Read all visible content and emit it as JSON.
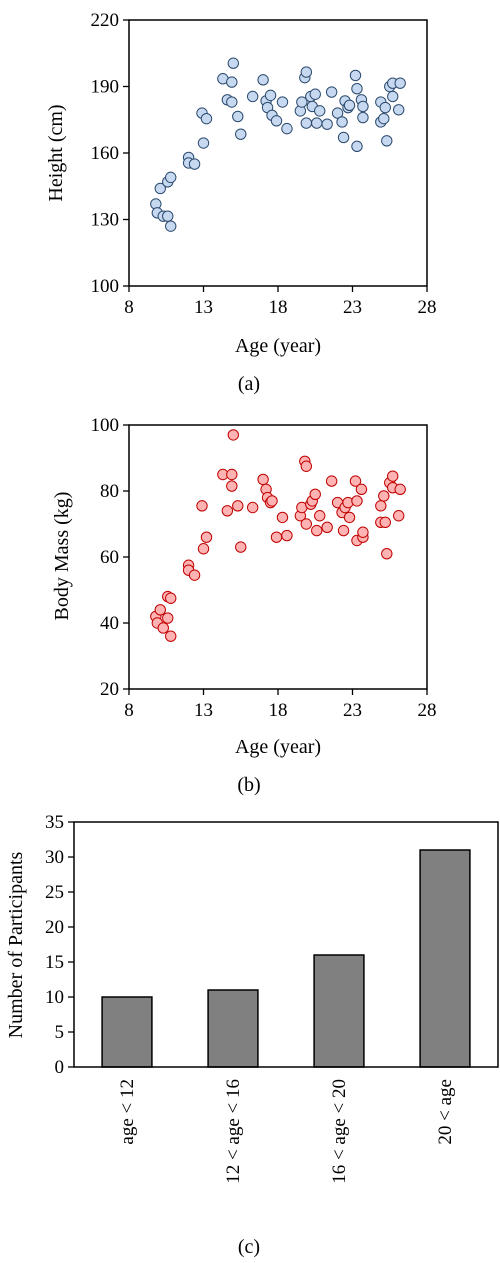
{
  "colors": {
    "panel_a_fill": "#c6d9f0",
    "panel_a_stroke": "#2c4a6e",
    "panel_b_fill": "#ffb3b3",
    "panel_b_stroke": "#c00000",
    "bar_fill": "#808080",
    "bar_stroke": "#000000"
  },
  "chart_data": [
    {
      "type": "scatter",
      "caption": "(a)",
      "xlabel": "Age (year)",
      "ylabel": "Height (cm)",
      "xlim": [
        8,
        28
      ],
      "ylim": [
        100,
        220
      ],
      "xticks": [
        8,
        13,
        18,
        23,
        28
      ],
      "yticks": [
        100,
        130,
        160,
        190,
        220
      ],
      "grid": false,
      "points": [
        [
          9.8,
          137
        ],
        [
          9.9,
          133
        ],
        [
          10.1,
          144
        ],
        [
          10.3,
          131.5
        ],
        [
          10.6,
          131.5
        ],
        [
          10.6,
          147
        ],
        [
          10.8,
          149
        ],
        [
          10.8,
          127
        ],
        [
          12.0,
          158
        ],
        [
          12.0,
          155.5
        ],
        [
          12.4,
          155
        ],
        [
          12.9,
          178
        ],
        [
          13.0,
          164.5
        ],
        [
          13.2,
          175.5
        ],
        [
          14.3,
          193.5
        ],
        [
          14.6,
          184
        ],
        [
          14.9,
          183
        ],
        [
          14.9,
          192
        ],
        [
          15.0,
          200.5
        ],
        [
          15.3,
          176.5
        ],
        [
          15.5,
          168.5
        ],
        [
          16.3,
          185.5
        ],
        [
          17.0,
          193
        ],
        [
          17.2,
          183.5
        ],
        [
          17.3,
          180.5
        ],
        [
          17.5,
          186
        ],
        [
          17.6,
          177
        ],
        [
          17.9,
          174.5
        ],
        [
          18.3,
          183
        ],
        [
          18.6,
          171
        ],
        [
          19.5,
          179
        ],
        [
          19.6,
          183
        ],
        [
          19.8,
          194
        ],
        [
          19.9,
          196.5
        ],
        [
          19.9,
          173.5
        ],
        [
          20.2,
          185.5
        ],
        [
          20.3,
          181
        ],
        [
          20.5,
          186.5
        ],
        [
          20.6,
          173.5
        ],
        [
          20.8,
          179
        ],
        [
          21.3,
          173
        ],
        [
          21.6,
          187.5
        ],
        [
          22.0,
          178
        ],
        [
          22.3,
          174
        ],
        [
          22.4,
          167
        ],
        [
          22.5,
          183.5
        ],
        [
          22.7,
          180.5
        ],
        [
          22.8,
          181.5
        ],
        [
          23.2,
          195
        ],
        [
          23.3,
          163
        ],
        [
          23.3,
          189
        ],
        [
          23.6,
          184
        ],
        [
          23.7,
          181
        ],
        [
          23.7,
          176
        ],
        [
          24.9,
          183
        ],
        [
          24.9,
          174
        ],
        [
          25.1,
          175.5
        ],
        [
          25.2,
          180.5
        ],
        [
          25.3,
          165.5
        ],
        [
          25.5,
          190
        ],
        [
          25.7,
          191.5
        ],
        [
          25.7,
          185.5
        ],
        [
          26.1,
          179.5
        ],
        [
          26.2,
          191.5
        ]
      ]
    },
    {
      "type": "scatter",
      "caption": "(b)",
      "xlabel": "Age (year)",
      "ylabel": "Body Mass (kg)",
      "xlim": [
        8,
        28
      ],
      "ylim": [
        20,
        100
      ],
      "xticks": [
        8,
        13,
        18,
        23,
        28
      ],
      "yticks": [
        20,
        40,
        60,
        80,
        100
      ],
      "grid": false,
      "points": [
        [
          9.8,
          42
        ],
        [
          9.9,
          40
        ],
        [
          10.1,
          44
        ],
        [
          10.3,
          38.5
        ],
        [
          10.6,
          41.5
        ],
        [
          10.6,
          48
        ],
        [
          10.8,
          47.5
        ],
        [
          10.8,
          36
        ],
        [
          12.0,
          57.5
        ],
        [
          12.0,
          56
        ],
        [
          12.4,
          54.5
        ],
        [
          12.9,
          75.5
        ],
        [
          13.0,
          62.5
        ],
        [
          13.2,
          66
        ],
        [
          14.3,
          85
        ],
        [
          14.6,
          74
        ],
        [
          14.9,
          85
        ],
        [
          14.9,
          81.5
        ],
        [
          15.0,
          97
        ],
        [
          15.3,
          75.5
        ],
        [
          15.5,
          63
        ],
        [
          16.3,
          75
        ],
        [
          17.0,
          83.5
        ],
        [
          17.2,
          80.5
        ],
        [
          17.3,
          78
        ],
        [
          17.5,
          76.5
        ],
        [
          17.6,
          77
        ],
        [
          17.9,
          66
        ],
        [
          18.3,
          72
        ],
        [
          18.6,
          66.5
        ],
        [
          19.5,
          72.5
        ],
        [
          19.6,
          75
        ],
        [
          19.8,
          89
        ],
        [
          19.9,
          87.5
        ],
        [
          19.9,
          70
        ],
        [
          20.2,
          76
        ],
        [
          20.3,
          77
        ],
        [
          20.5,
          79
        ],
        [
          20.6,
          68
        ],
        [
          20.8,
          72.5
        ],
        [
          21.3,
          69
        ],
        [
          21.6,
          83
        ],
        [
          22.0,
          76.5
        ],
        [
          22.3,
          73.5
        ],
        [
          22.4,
          68
        ],
        [
          22.5,
          75
        ],
        [
          22.7,
          76.5
        ],
        [
          22.8,
          72
        ],
        [
          23.2,
          83
        ],
        [
          23.3,
          65
        ],
        [
          23.3,
          77
        ],
        [
          23.6,
          80.5
        ],
        [
          23.7,
          66
        ],
        [
          23.7,
          67.5
        ],
        [
          24.9,
          70.5
        ],
        [
          24.9,
          75.5
        ],
        [
          25.1,
          78.5
        ],
        [
          25.2,
          70.5
        ],
        [
          25.3,
          61
        ],
        [
          25.5,
          82.5
        ],
        [
          25.7,
          84.5
        ],
        [
          25.7,
          81
        ],
        [
          26.1,
          72.5
        ],
        [
          26.2,
          80.5
        ]
      ]
    },
    {
      "type": "bar",
      "caption": "(c)",
      "xlabel": "",
      "ylabel": "Number of Participants",
      "categories": [
        "age < 12",
        "12 < age < 16",
        "16 < age < 20",
        "20 < age"
      ],
      "values": [
        10,
        11,
        16,
        31
      ],
      "ylim": [
        0,
        35
      ],
      "yticks": [
        0,
        5,
        10,
        15,
        20,
        25,
        30,
        35
      ],
      "grid": false
    }
  ]
}
